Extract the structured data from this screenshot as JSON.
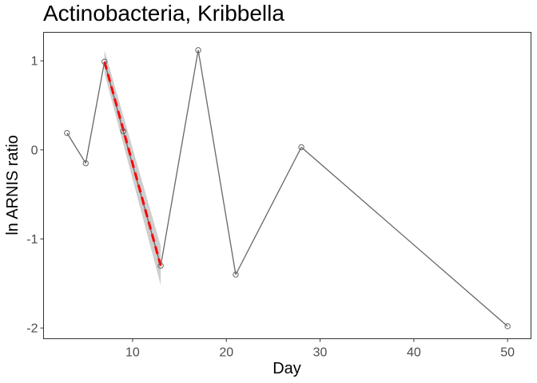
{
  "chart_data": {
    "type": "line",
    "title": "Actinobacteria, Kribbella",
    "xlabel": "Day",
    "ylabel": "ln ARNIS ratio",
    "xlim": [
      0.5,
      52.5
    ],
    "ylim": [
      -2.12,
      1.32
    ],
    "x_ticks": [
      10,
      20,
      30,
      40,
      50
    ],
    "y_ticks": [
      1,
      0,
      -1,
      -2
    ],
    "x_tick_labels": [
      "10",
      "20",
      "30",
      "40",
      "50"
    ],
    "y_tick_labels": [
      "1",
      "0",
      "-1",
      "-2"
    ],
    "grid": false,
    "legend": "none",
    "series": [
      {
        "x": [
          3,
          5,
          7,
          9,
          13,
          17,
          21,
          28,
          50
        ],
        "y": [
          0.19,
          -0.15,
          0.99,
          0.21,
          -1.3,
          1.12,
          -1.4,
          0.03,
          -1.98
        ],
        "color": "#666666",
        "marker": "open-circle"
      }
    ],
    "fit": {
      "x": [
        7,
        13
      ],
      "y": [
        0.99,
        -1.3
      ],
      "ci_halfwidth": [
        0.13,
        0.22
      ],
      "color": "#ff0000",
      "ribbon_color": "#bdbdbd",
      "linestyle": "dashed"
    }
  }
}
